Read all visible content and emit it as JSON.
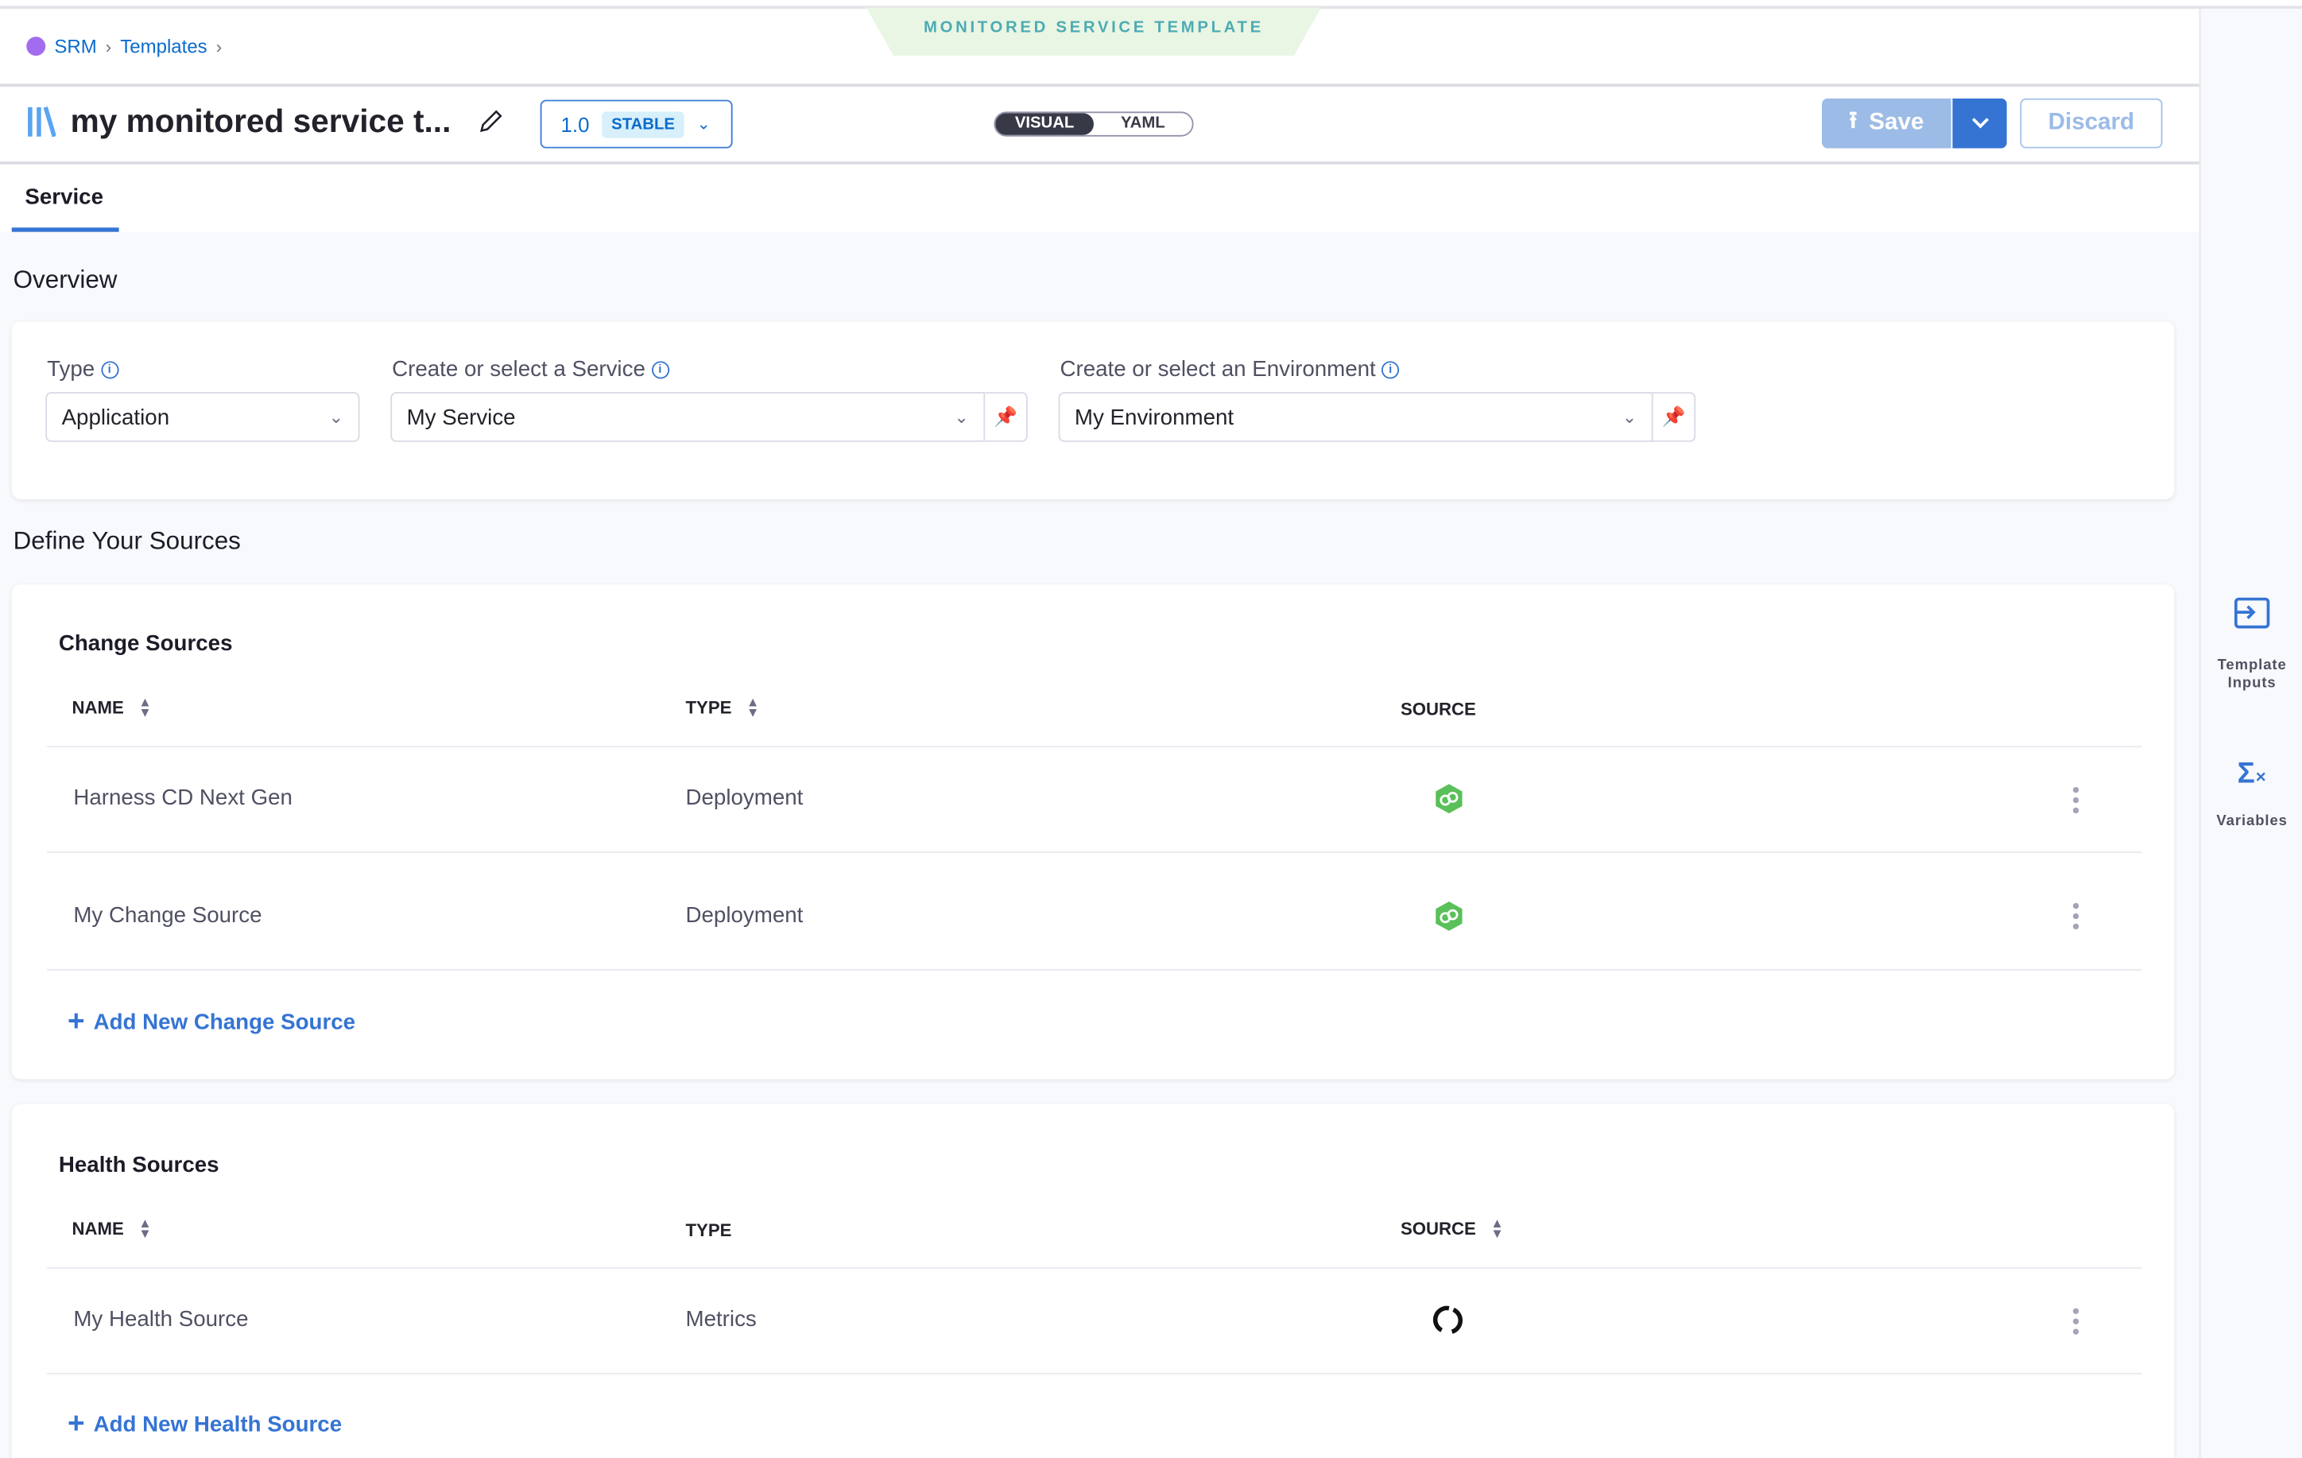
{
  "breadcrumb": {
    "items": [
      "SRM",
      "Templates"
    ]
  },
  "template_banner": "MONITORED SERVICE TEMPLATE",
  "header": {
    "title": "my monitored service t...",
    "version": "1.0",
    "version_badge": "STABLE",
    "view_toggle": {
      "options": [
        "VISUAL",
        "YAML"
      ],
      "selected": "VISUAL"
    },
    "save_label": "Save",
    "discard_label": "Discard"
  },
  "tabs": [
    {
      "label": "Service",
      "active": true
    }
  ],
  "overview": {
    "heading": "Overview",
    "type": {
      "label": "Type",
      "value": "Application"
    },
    "service": {
      "label": "Create or select a Service",
      "value": "My Service"
    },
    "environment": {
      "label": "Create or select an Environment",
      "value": "My Environment"
    }
  },
  "sources_heading": "Define Your Sources",
  "change_sources": {
    "title": "Change Sources",
    "columns": [
      "NAME",
      "TYPE",
      "SOURCE"
    ],
    "rows": [
      {
        "name": "Harness CD Next Gen",
        "type": "Deployment",
        "source_icon": "harness-cd-icon"
      },
      {
        "name": "My Change Source",
        "type": "Deployment",
        "source_icon": "harness-cd-icon"
      }
    ],
    "add_label": "Add New Change Source"
  },
  "health_sources": {
    "title": "Health Sources",
    "columns": [
      "NAME",
      "TYPE",
      "SOURCE"
    ],
    "rows": [
      {
        "name": "My Health Source",
        "type": "Metrics",
        "source_icon": "appdynamics-icon"
      }
    ],
    "add_label": "Add New Health Source"
  },
  "right_sidebar": {
    "items": [
      {
        "label": "Template Inputs",
        "icon": "template-inputs-icon"
      },
      {
        "label": "Variables",
        "icon": "variables-icon"
      }
    ]
  },
  "colors": {
    "primary": "#3574d3",
    "banner_bg": "#e9f6e4",
    "banner_text": "#4dabb3",
    "source_green": "#5ac05a"
  }
}
